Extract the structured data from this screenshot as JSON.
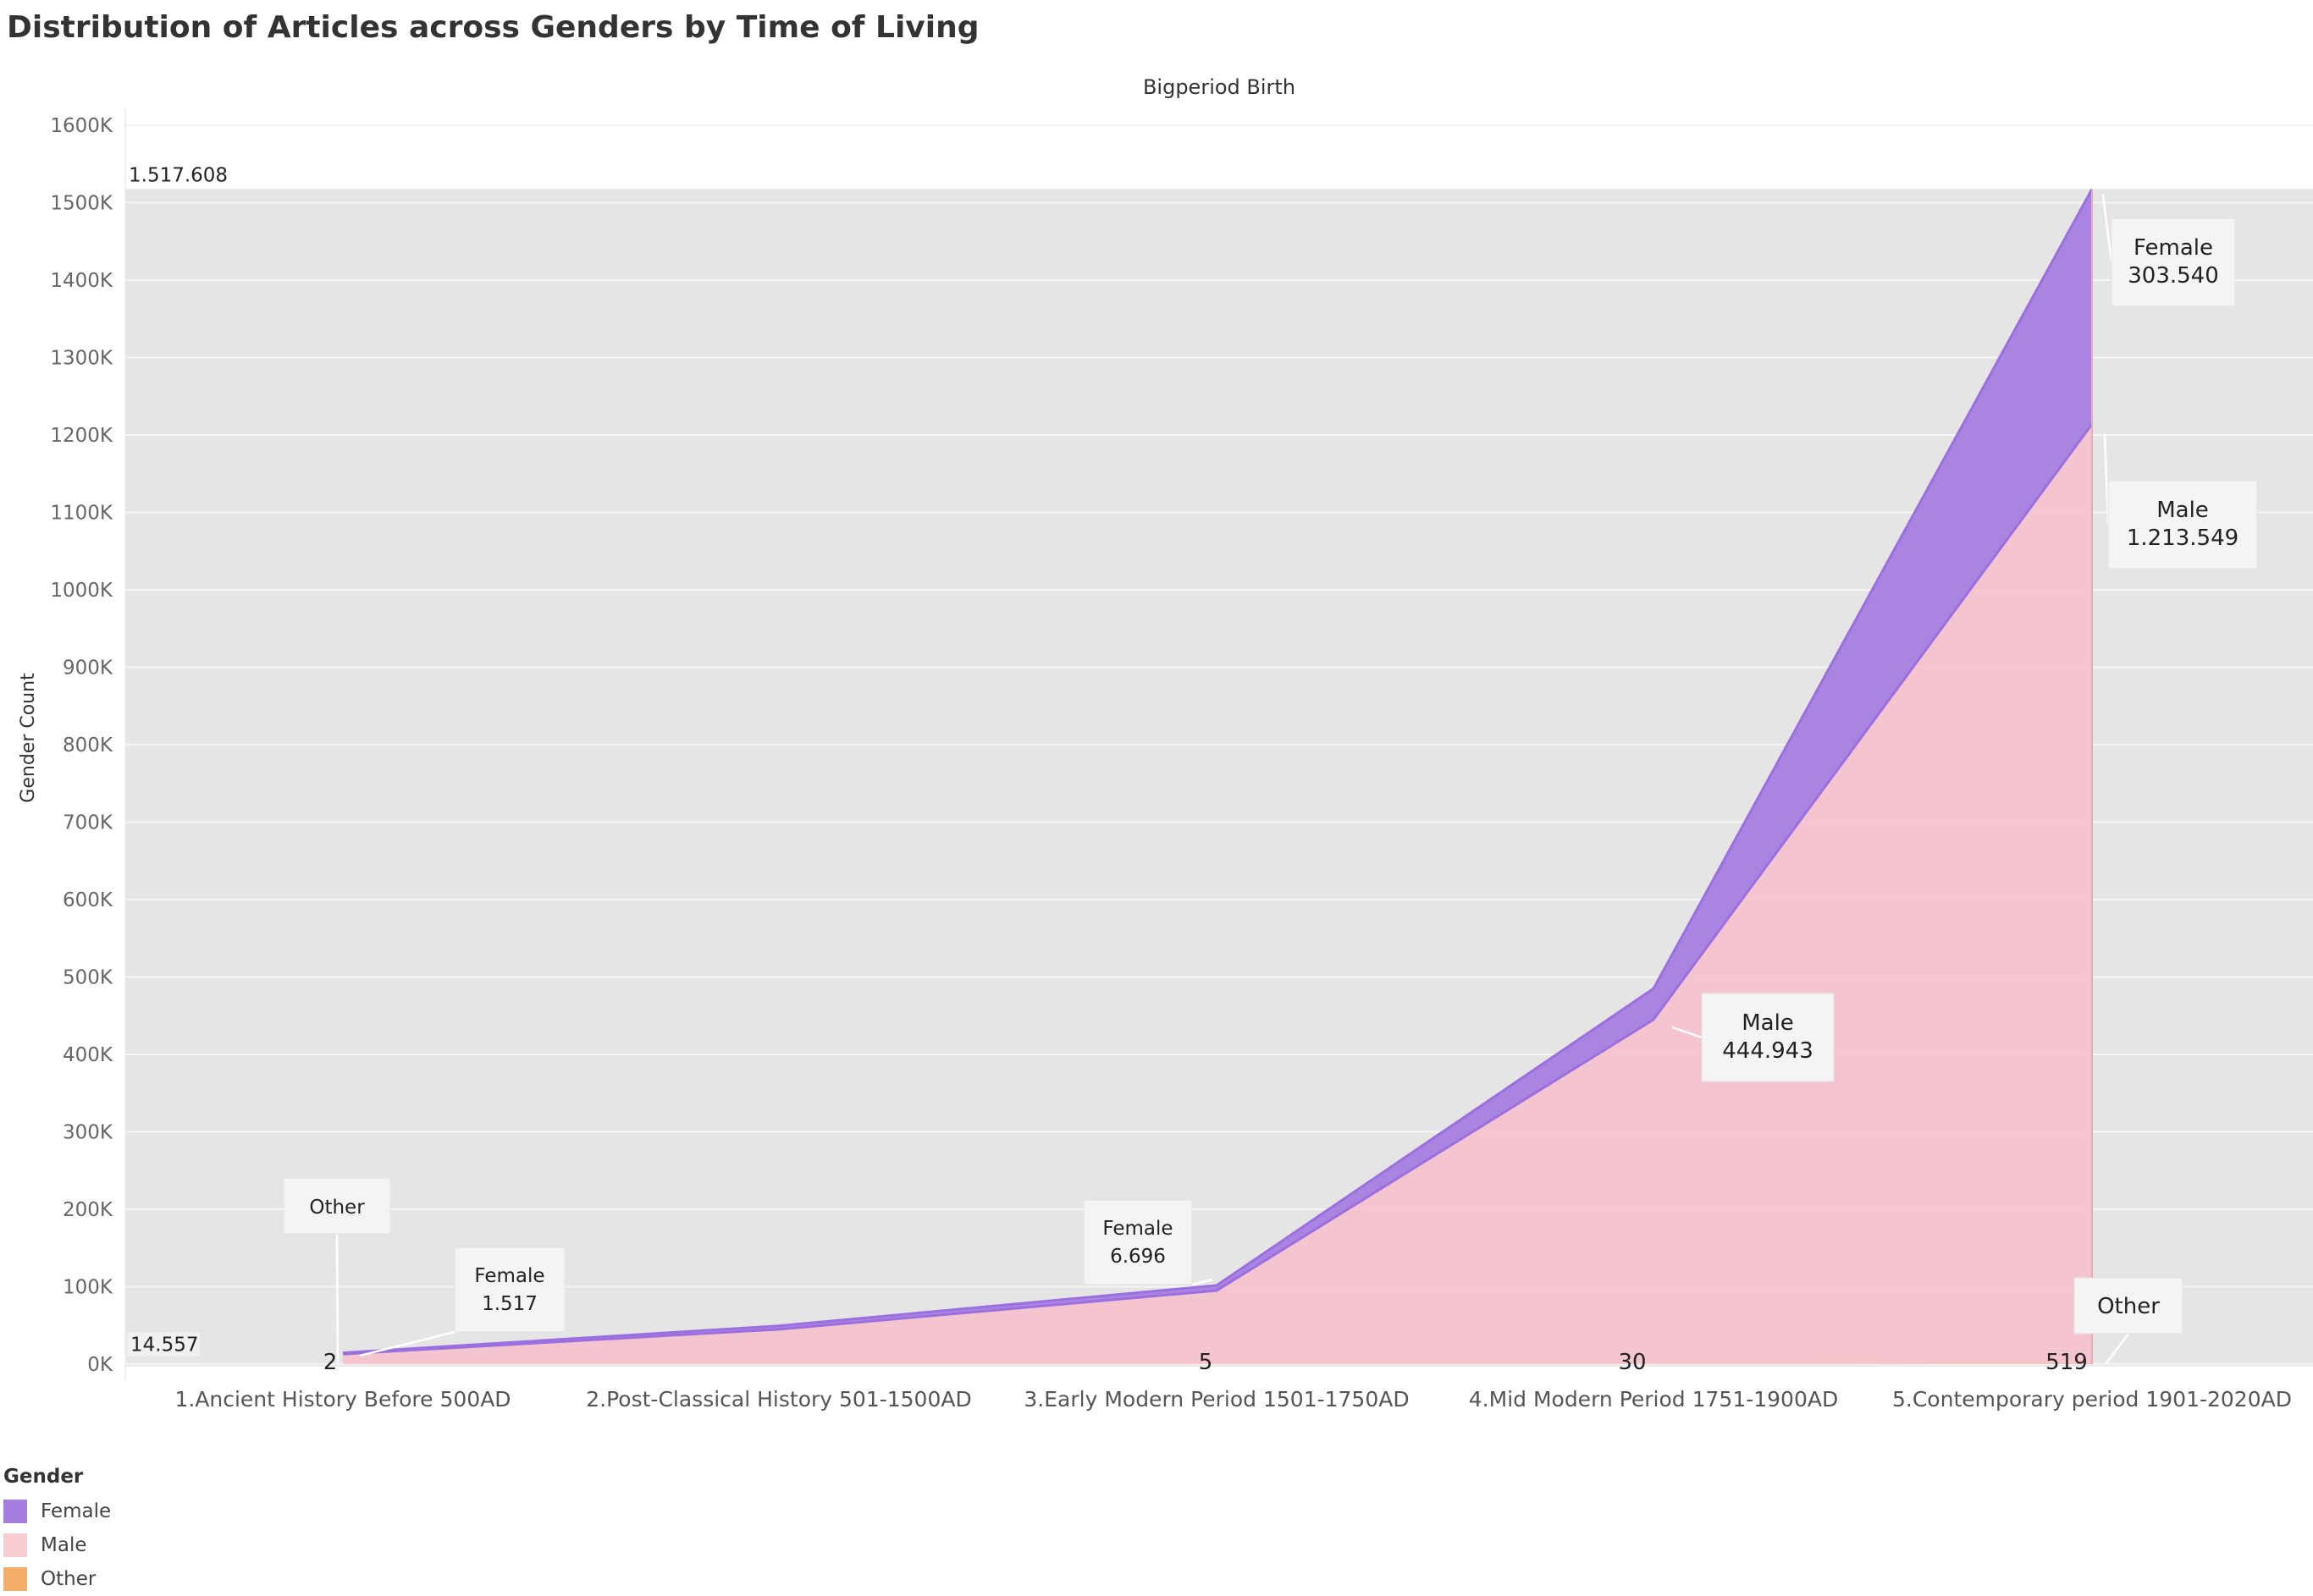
{
  "title": "Distribution of Articles across Genders by Time of Living",
  "chart_data": {
    "type": "area",
    "stacked": true,
    "title": "Distribution of Articles across Genders by Time of Living",
    "column_header": "Bigperiod Birth",
    "ylabel": "Gender Count",
    "xlabel": "",
    "categories": [
      "1.Ancient History Before 500AD",
      "2.Post-Classical History 501-1500AD",
      "3.Early Modern Period 1501-1750AD",
      "4.Mid Modern Period 1751-1900AD",
      "5.Contemporary period 1901-2020AD"
    ],
    "series": [
      {
        "name": "Other",
        "values": [
          2,
          3,
          5,
          30,
          519
        ]
      },
      {
        "name": "Male",
        "values": [
          13038,
          45000,
          95000,
          444943,
          1213549
        ]
      },
      {
        "name": "Female",
        "values": [
          1517,
          4500,
          6696,
          40000,
          303540
        ]
      }
    ],
    "ylim": [
      0,
      1600000
    ],
    "yticks": [
      0,
      100000,
      200000,
      300000,
      400000,
      500000,
      600000,
      700000,
      800000,
      900000,
      1000000,
      1100000,
      1200000,
      1300000,
      1400000,
      1500000,
      1600000
    ],
    "ytick_labels": [
      "0K",
      "100K",
      "200K",
      "300K",
      "400K",
      "500K",
      "600K",
      "700K",
      "800K",
      "900K",
      "1000K",
      "1100K",
      "1200K",
      "1300K",
      "1400K",
      "1500K",
      "1600K"
    ],
    "reference_band": {
      "min": 14557,
      "max": 1517608,
      "min_label": "14.557",
      "max_label": "1.517.608"
    },
    "other_labels": [
      "2",
      "5",
      "30",
      "519"
    ],
    "callouts": [
      {
        "series": "Other",
        "category_index": 0,
        "label": "Other",
        "value": ""
      },
      {
        "series": "Female",
        "category_index": 0,
        "label": "Female",
        "value": "1.517"
      },
      {
        "series": "Female",
        "category_index": 2,
        "label": "Female",
        "value": "6.696"
      },
      {
        "series": "Male",
        "category_index": 3,
        "label": "Male",
        "value": "444.943"
      },
      {
        "series": "Female",
        "category_index": 4,
        "label": "Female",
        "value": "303.540"
      },
      {
        "series": "Male",
        "category_index": 4,
        "label": "Male",
        "value": "1.213.549"
      },
      {
        "series": "Other",
        "category_index": 4,
        "label": "Other",
        "value": ""
      }
    ],
    "grid": true,
    "legend": {
      "title": "Gender",
      "position": "bottom-left"
    },
    "colors": {
      "Female": "#a67ee0",
      "Female_line": "#9b6fe0",
      "Male": "#f5c2cc",
      "Male_line": "#ef9fb1",
      "Other": "#f5ad6a",
      "band": "#e5e5e5",
      "grid": "#f5f5f5"
    }
  },
  "legend": {
    "title": "Gender",
    "items": [
      {
        "label": "Female",
        "color": "#a67ee0"
      },
      {
        "label": "Male",
        "color": "#f9ccd4"
      },
      {
        "label": "Other",
        "color": "#f5ad6a"
      }
    ]
  }
}
